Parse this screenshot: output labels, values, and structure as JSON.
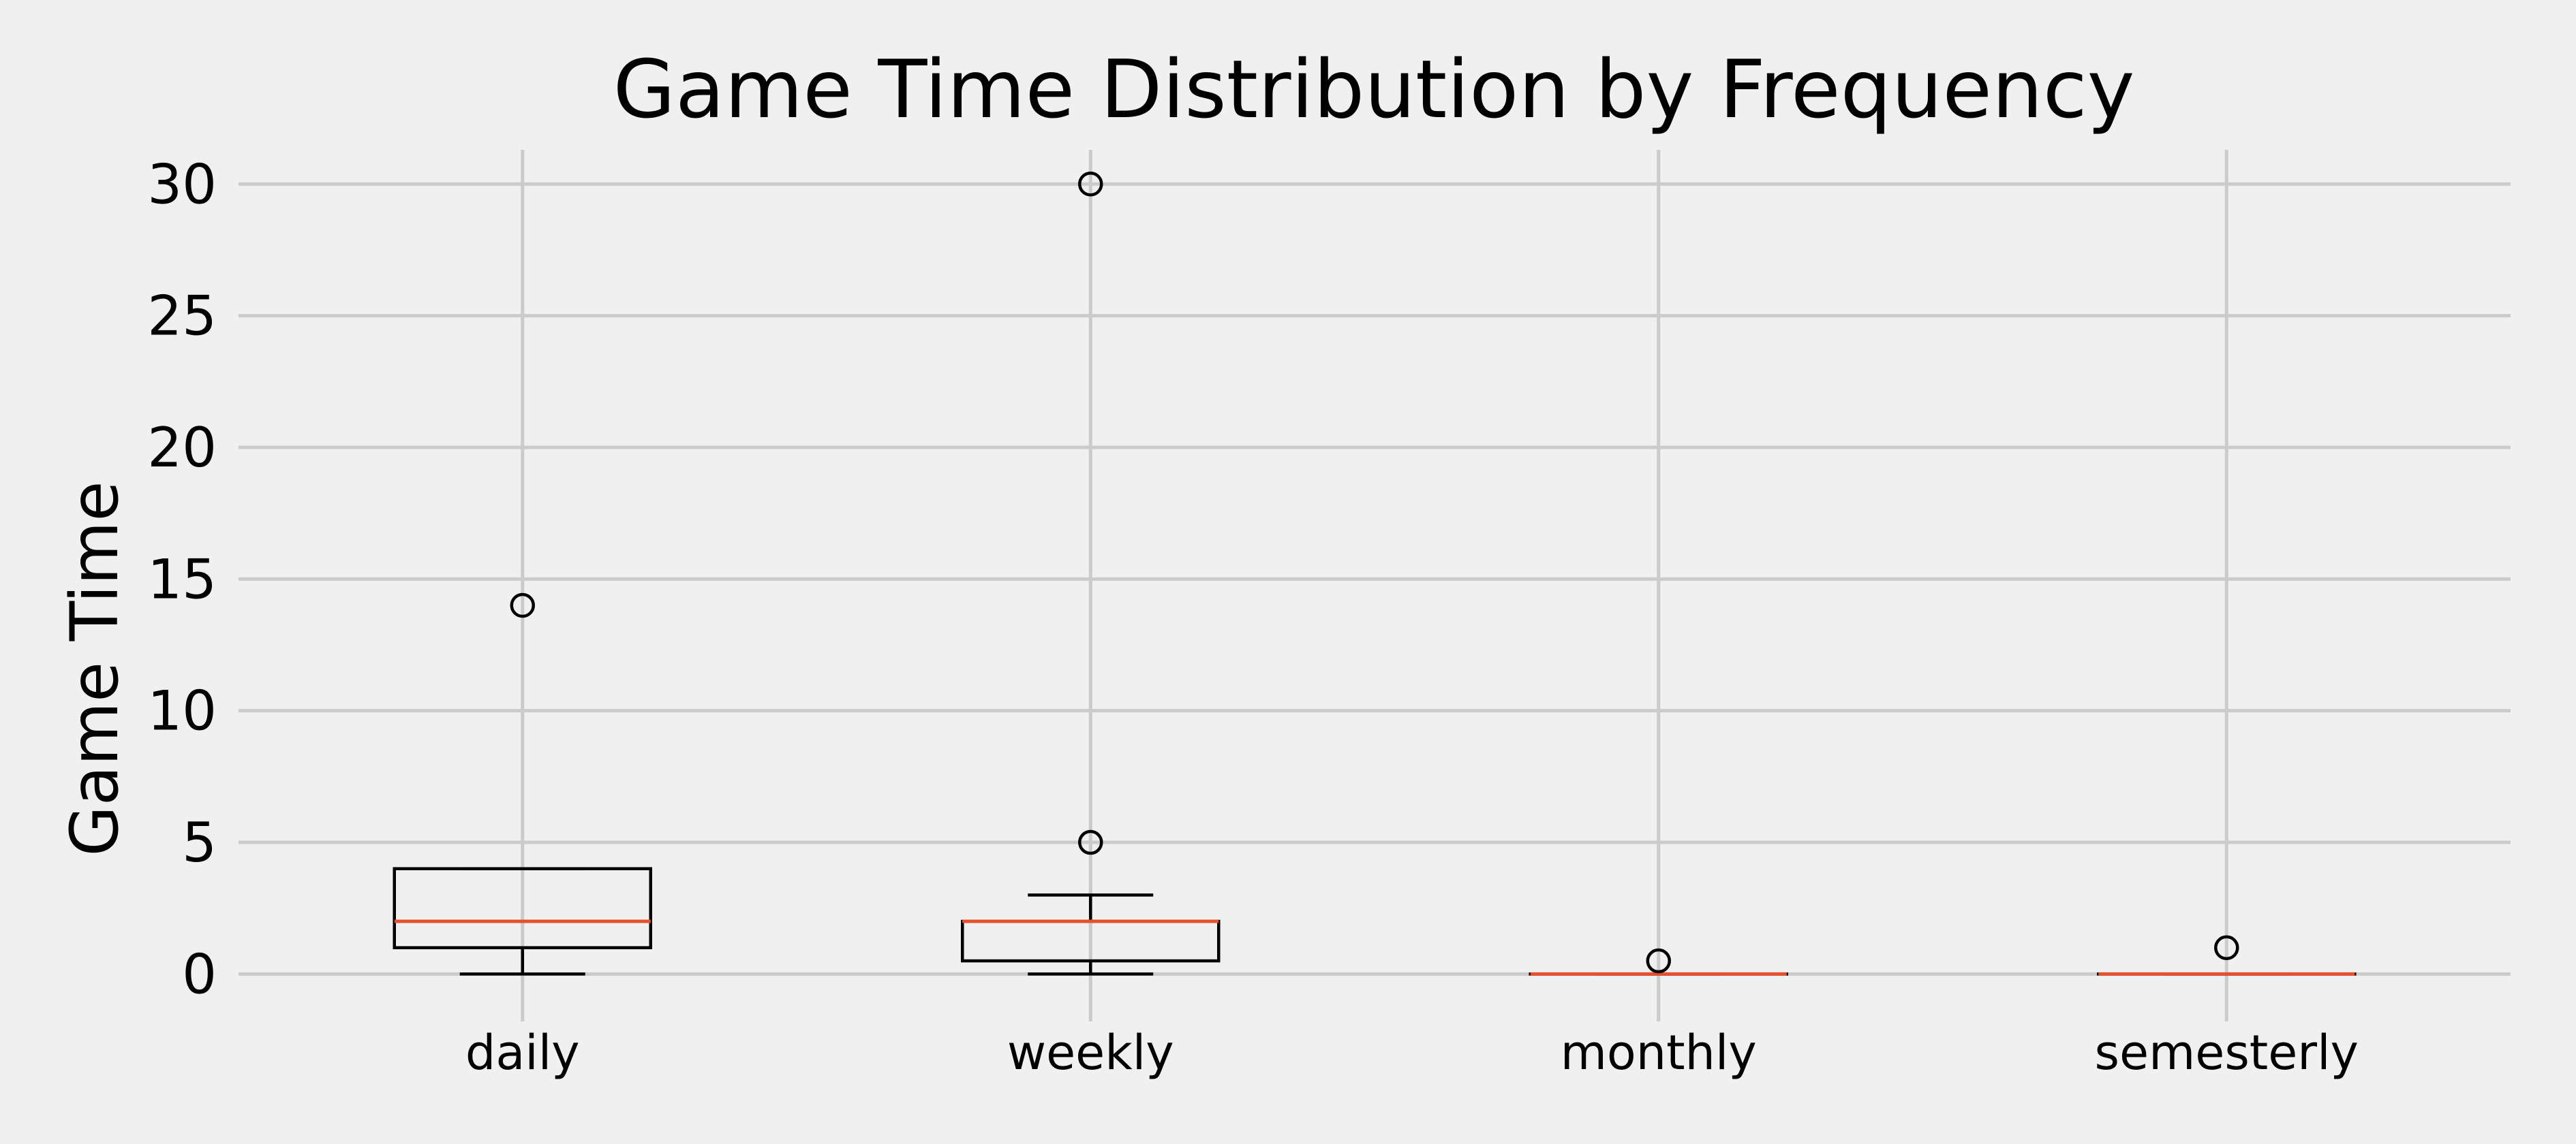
{
  "chart_data": {
    "type": "box",
    "title": "Game Time Distribution by Frequency",
    "xlabel": "",
    "ylabel": "Game Time",
    "ylim": [
      -1.8,
      31.3
    ],
    "yticks": [
      0,
      5,
      10,
      15,
      20,
      25,
      30
    ],
    "grid": true,
    "categories": [
      "daily",
      "weekly",
      "monthly",
      "semesterly"
    ],
    "boxes": [
      {
        "category": "daily",
        "whisker_low": 0,
        "q1": 1,
        "median": 2,
        "q3": 4,
        "whisker_high": 4,
        "outliers": [
          14
        ]
      },
      {
        "category": "weekly",
        "whisker_low": 0,
        "q1": 0.5,
        "median": 2,
        "q3": 2,
        "whisker_high": 3,
        "outliers": [
          5,
          30
        ]
      },
      {
        "category": "monthly",
        "whisker_low": 0,
        "q1": 0,
        "median": 0,
        "q3": 0,
        "whisker_high": 0,
        "outliers": [
          0.5
        ]
      },
      {
        "category": "semesterly",
        "whisker_low": 0,
        "q1": 0,
        "median": 0,
        "q3": 0,
        "whisker_high": 0,
        "outliers": [
          1
        ]
      }
    ],
    "colors": {
      "background": "#f0f0f0",
      "grid": "#cbcbcb",
      "box": "#000000",
      "median": "#e5512d"
    }
  }
}
